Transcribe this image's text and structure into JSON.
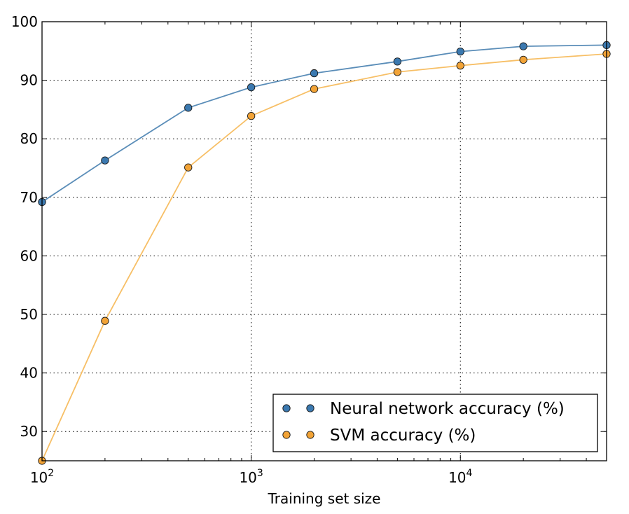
{
  "chart_data": {
    "type": "line",
    "title": "",
    "xlabel": "Training set size",
    "ylabel": "",
    "x_scale": "log",
    "xlim": [
      100,
      50000
    ],
    "ylim": [
      25,
      100
    ],
    "x": [
      100,
      200,
      500,
      1000,
      2000,
      5000,
      10000,
      20000,
      50000
    ],
    "x_ticks": [
      {
        "value": 100,
        "base": "10",
        "exp": "2"
      },
      {
        "value": 1000,
        "base": "10",
        "exp": "3"
      },
      {
        "value": 10000,
        "base": "10",
        "exp": "4"
      }
    ],
    "y_ticks": [
      30,
      40,
      50,
      60,
      70,
      80,
      90,
      100
    ],
    "grid": true,
    "legend_position": "bottom-right",
    "series": [
      {
        "name": "Neural network accuracy (%)",
        "color": "#3b79b0",
        "line_color": "#5a8db8",
        "values": [
          69.2,
          76.3,
          85.3,
          88.8,
          91.2,
          93.2,
          94.9,
          95.8,
          96.0
        ]
      },
      {
        "name": "SVM accuracy (%)",
        "color": "#f2a336",
        "line_color": "#f7bf66",
        "values": [
          25.0,
          48.9,
          75.1,
          83.9,
          88.5,
          91.4,
          92.5,
          93.5,
          94.5
        ]
      }
    ]
  }
}
